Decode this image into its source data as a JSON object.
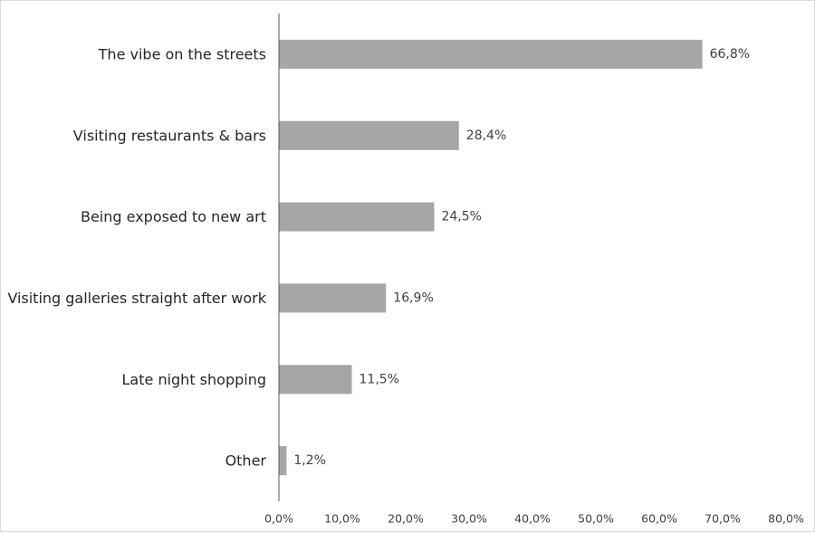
{
  "chart_data": {
    "type": "bar",
    "orientation": "horizontal",
    "categories": [
      "The vibe on the streets",
      "Visiting restaurants & bars",
      "Being exposed to new art",
      "Visiting galleries straight after work",
      "Late night shopping",
      "Other"
    ],
    "values": [
      66.8,
      28.4,
      24.5,
      16.9,
      11.5,
      1.2
    ],
    "data_labels": [
      "66,8%",
      "28,4%",
      "24,5%",
      "16,9%",
      "11,5%",
      "1,2%"
    ],
    "xlim": [
      0,
      80
    ],
    "x_ticks": [
      0,
      10,
      20,
      30,
      40,
      50,
      60,
      70,
      80
    ],
    "x_tick_labels": [
      "0,0%",
      "10,0%",
      "20,0%",
      "30,0%",
      "40,0%",
      "50,0%",
      "60,0%",
      "70,0%",
      "80,0%"
    ],
    "grid": false,
    "legend": "none",
    "bar_color": "#a6a6a6",
    "axis_color": "#595959",
    "title": "",
    "xlabel": "",
    "ylabel": ""
  }
}
